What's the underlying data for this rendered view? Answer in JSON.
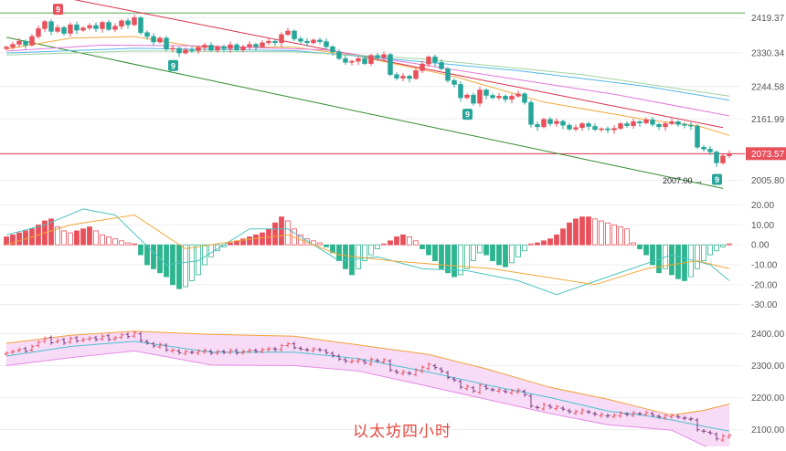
{
  "colors": {
    "up": "#e8505b",
    "down": "#26a69a",
    "macd_up": "#e8505b",
    "macd_down": "#2db58f",
    "grid": "#eeeeee",
    "trend_upper": "#d9304a",
    "trend_lower": "#2e8b2e",
    "hline_top": "#5aa55a",
    "hline_price": "#d9304a",
    "band_fill": "#f3ccf3",
    "band_upper": "#f4a13a",
    "band_lower": "#e58ce5",
    "band_mid": "#4fc0cf",
    "ma1": "#f2a93b",
    "ma2": "#e277d9",
    "ma3": "#52b7e8",
    "ma4": "#9fd39f",
    "dif": "#4ec3c3",
    "dea": "#f2a93b",
    "price_badge": "#e8505b"
  },
  "caption": "以太坊四小时",
  "price_tag": "2073.57",
  "low_label": "2007.00",
  "low_arrow": "→",
  "seq_badge": "9",
  "chart_data": [
    {
      "type": "candlestick",
      "name": "price",
      "y_ticks": [
        "2419.37",
        "2330.34",
        "2244.58",
        "2161.99",
        "2073.57",
        "2005.80"
      ],
      "ylim": [
        1965,
        2465
      ],
      "last_price": 2073.57,
      "marked_low": 2007.0,
      "horizontal_levels": [
        2432,
        2073.57
      ],
      "trend_upper": [
        [
          0,
          2500
        ],
        [
          112,
          2140
        ]
      ],
      "trend_lower": [
        [
          0,
          2370
        ],
        [
          112,
          1985
        ]
      ],
      "seq_marks": [
        {
          "i": 8,
          "side": "top",
          "color": "up"
        },
        {
          "i": 26,
          "side": "bottom",
          "color": "down"
        },
        {
          "i": 72,
          "side": "bottom",
          "color": "down"
        },
        {
          "i": 111,
          "side": "bottom",
          "color": "down"
        }
      ],
      "closes": [
        2345,
        2352,
        2360,
        2350,
        2372,
        2392,
        2410,
        2385,
        2395,
        2380,
        2402,
        2388,
        2394,
        2400,
        2392,
        2408,
        2390,
        2398,
        2412,
        2402,
        2420,
        2382,
        2372,
        2358,
        2368,
        2340,
        2342,
        2330,
        2338,
        2336,
        2344,
        2350,
        2337,
        2346,
        2341,
        2351,
        2338,
        2346,
        2352,
        2346,
        2356,
        2360,
        2356,
        2377,
        2386,
        2366,
        2360,
        2356,
        2363,
        2359,
        2346,
        2333,
        2316,
        2306,
        2309,
        2316,
        2303,
        2324,
        2318,
        2326,
        2275,
        2266,
        2271,
        2265,
        2285,
        2302,
        2320,
        2306,
        2290,
        2260,
        2250,
        2216,
        2223,
        2202,
        2236,
        2222,
        2216,
        2220,
        2212,
        2220,
        2226,
        2204,
        2148,
        2142,
        2161,
        2150,
        2156,
        2146,
        2136,
        2140,
        2150,
        2143,
        2135,
        2137,
        2134,
        2138,
        2150,
        2145,
        2155,
        2152,
        2160,
        2148,
        2142,
        2150,
        2155,
        2148,
        2146,
        2144,
        2090,
        2085,
        2078,
        2050,
        2068,
        2073.57
      ],
      "ma_lines": [
        {
          "key": "ma1",
          "points": [
            [
              0,
              2340
            ],
            [
              10,
              2368
            ],
            [
              20,
              2372
            ],
            [
              30,
              2345
            ],
            [
              45,
              2345
            ],
            [
              55,
              2322
            ],
            [
              70,
              2270
            ],
            [
              84,
              2205
            ],
            [
              100,
              2160
            ],
            [
              108,
              2145
            ],
            [
              113,
              2120
            ]
          ]
        },
        {
          "key": "ma2",
          "points": [
            [
              0,
              2335
            ],
            [
              15,
              2350
            ],
            [
              30,
              2348
            ],
            [
              50,
              2338
            ],
            [
              65,
              2300
            ],
            [
              80,
              2262
            ],
            [
              95,
              2225
            ],
            [
              113,
              2170
            ]
          ]
        },
        {
          "key": "ma3",
          "points": [
            [
              0,
              2330
            ],
            [
              20,
              2342
            ],
            [
              45,
              2336
            ],
            [
              60,
              2315
            ],
            [
              80,
              2285
            ],
            [
              100,
              2245
            ],
            [
              113,
              2210
            ]
          ]
        },
        {
          "key": "ma4",
          "points": [
            [
              0,
              2325
            ],
            [
              20,
              2335
            ],
            [
              45,
              2333
            ],
            [
              65,
              2315
            ],
            [
              90,
              2275
            ],
            [
              113,
              2220
            ]
          ]
        }
      ]
    },
    {
      "type": "bar",
      "name": "macd",
      "y_ticks": [
        "20.00",
        "10.00",
        "0.00",
        "-10.00",
        "-20.00",
        "-30.00"
      ],
      "ylim": [
        -32,
        23
      ],
      "histogram": [
        4,
        5,
        6,
        7,
        8,
        10,
        12,
        13,
        9,
        7,
        6,
        7,
        8,
        9,
        7,
        5,
        4,
        3,
        2,
        1,
        0.5,
        -5,
        -10,
        -12,
        -14,
        -16,
        -20,
        -22,
        -21,
        -18,
        -15,
        -10,
        -6,
        -3,
        -1,
        1,
        2,
        3,
        4,
        5,
        6,
        8,
        11,
        14,
        12,
        8,
        5,
        3,
        2,
        1,
        -1,
        -4,
        -8,
        -12,
        -15,
        -12,
        -8,
        -5,
        -2,
        0.5,
        2,
        4,
        5,
        4,
        2,
        -2,
        -5,
        -8,
        -12,
        -14,
        -16,
        -15,
        -12,
        -8,
        -4,
        -5,
        -8,
        -10,
        -11,
        -9,
        -6,
        -3,
        0.5,
        1,
        2,
        3,
        5,
        8,
        11,
        13,
        14,
        14,
        13,
        12,
        11,
        10,
        9,
        8,
        1,
        -2,
        -5,
        -10,
        -14,
        -12,
        -15,
        -17,
        -18,
        -16,
        -12,
        -8,
        -5,
        -3,
        -1,
        0.5
      ],
      "dif": [
        [
          0,
          5
        ],
        [
          6,
          10
        ],
        [
          12,
          18
        ],
        [
          17,
          15
        ],
        [
          25,
          -10
        ],
        [
          30,
          -8
        ],
        [
          38,
          8
        ],
        [
          44,
          8
        ],
        [
          52,
          -8
        ],
        [
          58,
          -6
        ],
        [
          65,
          -12
        ],
        [
          72,
          -13
        ],
        [
          80,
          -18
        ],
        [
          86,
          -25
        ],
        [
          95,
          -15
        ],
        [
          104,
          -5
        ],
        [
          110,
          -10
        ],
        [
          113,
          -18
        ]
      ],
      "dea": [
        [
          0,
          0
        ],
        [
          10,
          10
        ],
        [
          20,
          15
        ],
        [
          28,
          -2
        ],
        [
          36,
          2
        ],
        [
          44,
          5
        ],
        [
          52,
          -5
        ],
        [
          60,
          -8
        ],
        [
          68,
          -10
        ],
        [
          76,
          -12
        ],
        [
          84,
          -16
        ],
        [
          92,
          -20
        ],
        [
          100,
          -12
        ],
        [
          108,
          -8
        ],
        [
          113,
          -12
        ]
      ]
    },
    {
      "type": "bollinger",
      "name": "band",
      "y_ticks": [
        "2400.00",
        "2300.00",
        "2200.00",
        "2100.00"
      ],
      "ylim": [
        2050,
        2450
      ],
      "upper": [
        [
          0,
          2370
        ],
        [
          10,
          2395
        ],
        [
          20,
          2408
        ],
        [
          32,
          2398
        ],
        [
          45,
          2392
        ],
        [
          55,
          2365
        ],
        [
          66,
          2335
        ],
        [
          75,
          2290
        ],
        [
          85,
          2232
        ],
        [
          94,
          2195
        ],
        [
          100,
          2165
        ],
        [
          104,
          2145
        ],
        [
          109,
          2160
        ],
        [
          113,
          2180
        ]
      ],
      "mid": [
        [
          0,
          2330
        ],
        [
          10,
          2360
        ],
        [
          20,
          2376
        ],
        [
          32,
          2342
        ],
        [
          45,
          2342
        ],
        [
          55,
          2322
        ],
        [
          66,
          2280
        ],
        [
          75,
          2240
        ],
        [
          85,
          2200
        ],
        [
          94,
          2158
        ],
        [
          100,
          2143
        ],
        [
          104,
          2130
        ],
        [
          109,
          2110
        ],
        [
          113,
          2095
        ]
      ],
      "lower": [
        [
          0,
          2300
        ],
        [
          10,
          2325
        ],
        [
          20,
          2346
        ],
        [
          32,
          2302
        ],
        [
          45,
          2300
        ],
        [
          55,
          2283
        ],
        [
          66,
          2235
        ],
        [
          75,
          2195
        ],
        [
          85,
          2150
        ],
        [
          94,
          2115
        ],
        [
          100,
          2105
        ],
        [
          104,
          2098
        ],
        [
          109,
          2050
        ],
        [
          113,
          2020
        ]
      ]
    }
  ]
}
